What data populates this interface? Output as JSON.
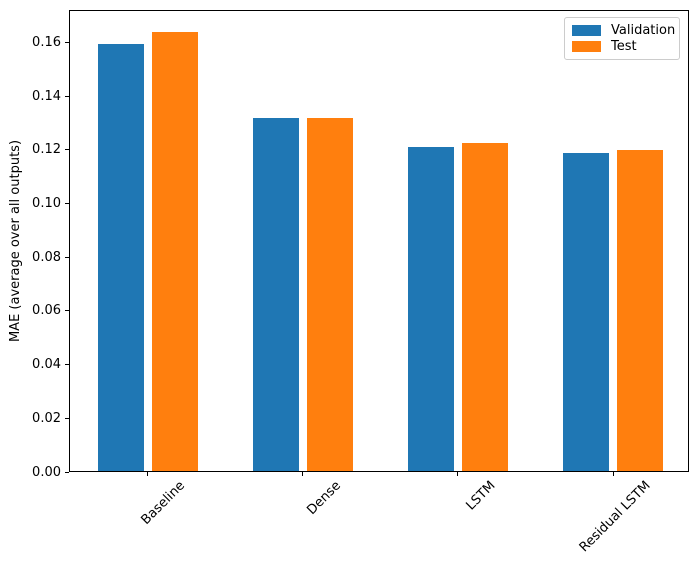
{
  "chart_data": {
    "type": "bar",
    "title": "",
    "categories": [
      "Baseline",
      "Dense",
      "LSTM",
      "Residual LSTM"
    ],
    "series": [
      {
        "name": "Validation",
        "color": "#1f77b4",
        "values": [
          0.159,
          0.1315,
          0.1205,
          0.1185
        ]
      },
      {
        "name": "Test",
        "color": "#ff7f0e",
        "values": [
          0.1635,
          0.1315,
          0.122,
          0.1195
        ]
      }
    ],
    "xlabel": "",
    "ylabel": "MAE (average over all outputs)",
    "ylim": [
      0,
      0.1717
    ],
    "ytick_labels": [
      "0.00",
      "0.02",
      "0.04",
      "0.06",
      "0.08",
      "0.10",
      "0.12",
      "0.14",
      "0.16"
    ],
    "xtick_rotation": 45,
    "grid": false,
    "legend": {
      "position": "upper-right",
      "entries": [
        "Validation",
        "Test"
      ]
    },
    "colors": {
      "validation": "#1f77b4",
      "test": "#ff7f0e",
      "axis": "#000000",
      "legend_border": "#cccccc",
      "background": "#ffffff"
    }
  }
}
